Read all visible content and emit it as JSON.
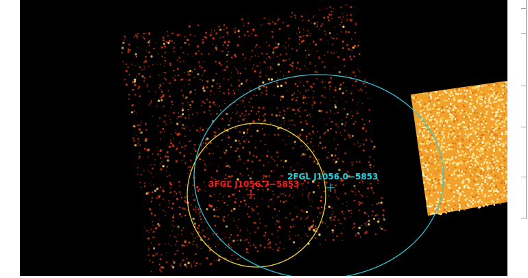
{
  "sources": [
    {
      "label": "2FGL J1056.0−5853",
      "color": "#1fd3df"
    },
    {
      "label": "3FGL J1056.7−5853",
      "color": "#ff1a1a"
    }
  ],
  "regions": [
    {
      "name": "2fgl-error-ellipse",
      "color": "#2fc6d8"
    },
    {
      "name": "3fgl-error-ellipse",
      "color": "#e8d33a"
    }
  ],
  "image": {
    "background_color": "#000000",
    "noise_color": "#e23b12",
    "bright_source_color": "#ffe070"
  }
}
